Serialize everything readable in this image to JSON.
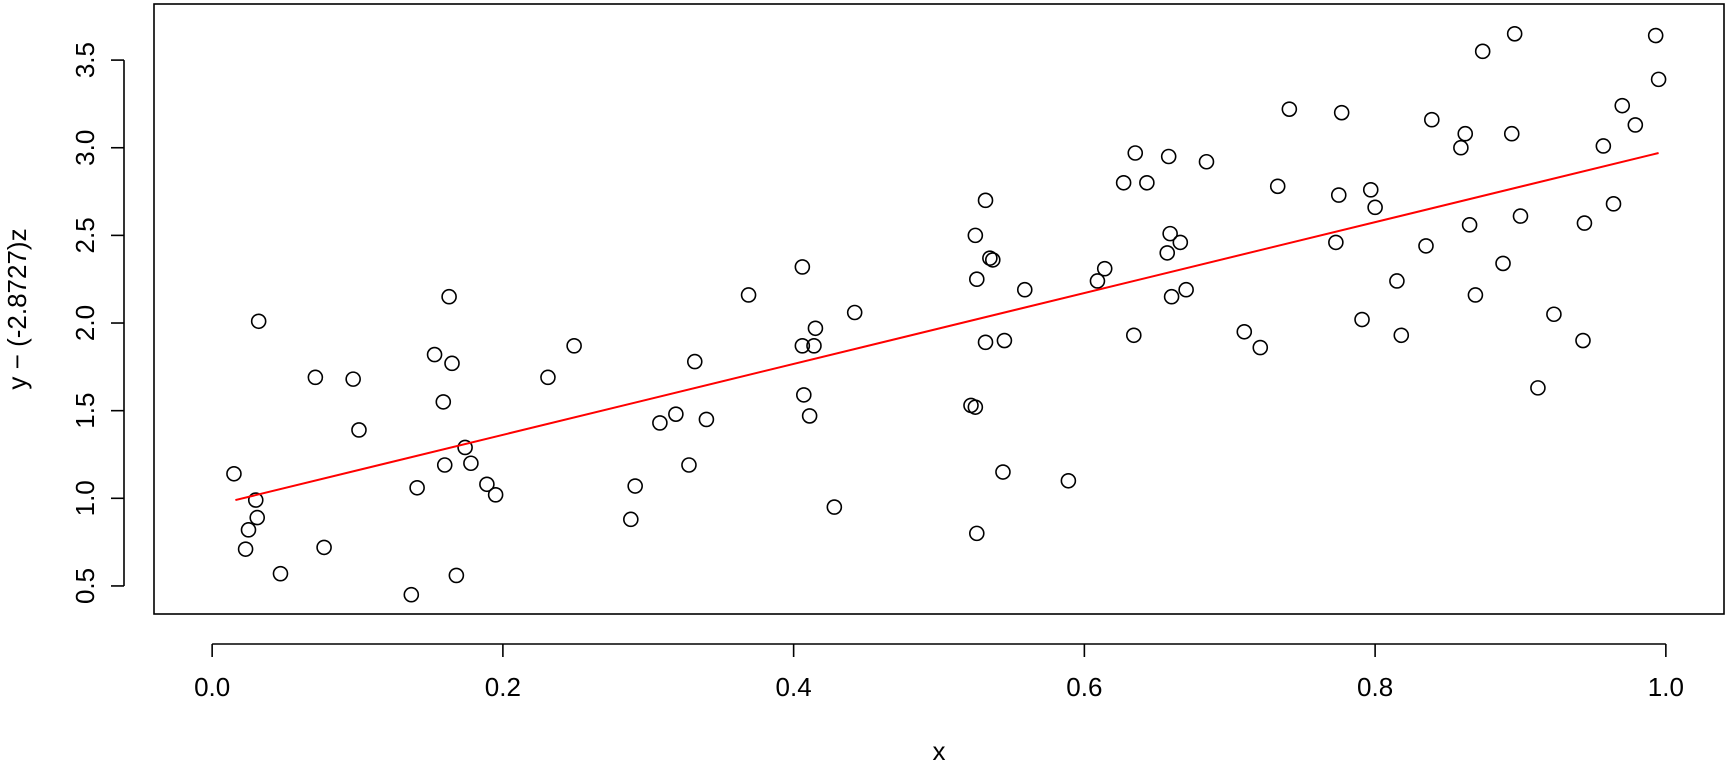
{
  "chart_data": {
    "type": "scatter",
    "title": "",
    "xlabel": "x",
    "ylabel": "y − (-2.8727)z",
    "xlim": [
      -0.04,
      1.04
    ],
    "ylim": [
      0.34,
      3.82
    ],
    "x_ticks": [
      0.0,
      0.2,
      0.4,
      0.6,
      0.8,
      1.0
    ],
    "x_tick_labels": [
      "0.0",
      "0.2",
      "0.4",
      "0.6",
      "0.8",
      "1.0"
    ],
    "y_ticks": [
      0.5,
      1.0,
      1.5,
      2.0,
      2.5,
      3.0,
      3.5
    ],
    "y_tick_labels": [
      "0.5",
      "1.0",
      "1.5",
      "2.0",
      "2.5",
      "3.0",
      "3.5"
    ],
    "grid": false,
    "legend": "none",
    "colors": {
      "points": "#000000",
      "fit_line": "#ff0000",
      "frame": "#000000"
    },
    "fit_line": {
      "x": [
        0.016,
        0.995
      ],
      "y": [
        0.99,
        2.97
      ]
    },
    "points": [
      {
        "x": 0.015,
        "y": 1.14
      },
      {
        "x": 0.023,
        "y": 0.71
      },
      {
        "x": 0.025,
        "y": 0.82
      },
      {
        "x": 0.03,
        "y": 0.99
      },
      {
        "x": 0.031,
        "y": 0.89
      },
      {
        "x": 0.032,
        "y": 2.01
      },
      {
        "x": 0.047,
        "y": 0.57
      },
      {
        "x": 0.071,
        "y": 1.69
      },
      {
        "x": 0.077,
        "y": 0.72
      },
      {
        "x": 0.097,
        "y": 1.68
      },
      {
        "x": 0.101,
        "y": 1.39
      },
      {
        "x": 0.137,
        "y": 0.45
      },
      {
        "x": 0.141,
        "y": 1.06
      },
      {
        "x": 0.153,
        "y": 1.82
      },
      {
        "x": 0.159,
        "y": 1.55
      },
      {
        "x": 0.16,
        "y": 1.19
      },
      {
        "x": 0.163,
        "y": 2.15
      },
      {
        "x": 0.165,
        "y": 1.77
      },
      {
        "x": 0.168,
        "y": 0.56
      },
      {
        "x": 0.174,
        "y": 1.29
      },
      {
        "x": 0.178,
        "y": 1.2
      },
      {
        "x": 0.189,
        "y": 1.08
      },
      {
        "x": 0.195,
        "y": 1.02
      },
      {
        "x": 0.231,
        "y": 1.69
      },
      {
        "x": 0.249,
        "y": 1.87
      },
      {
        "x": 0.288,
        "y": 0.88
      },
      {
        "x": 0.291,
        "y": 1.07
      },
      {
        "x": 0.308,
        "y": 1.43
      },
      {
        "x": 0.319,
        "y": 1.48
      },
      {
        "x": 0.328,
        "y": 1.19
      },
      {
        "x": 0.332,
        "y": 1.78
      },
      {
        "x": 0.34,
        "y": 1.45
      },
      {
        "x": 0.369,
        "y": 2.16
      },
      {
        "x": 0.406,
        "y": 2.32
      },
      {
        "x": 0.406,
        "y": 1.87
      },
      {
        "x": 0.407,
        "y": 1.59
      },
      {
        "x": 0.411,
        "y": 1.47
      },
      {
        "x": 0.414,
        "y": 1.87
      },
      {
        "x": 0.415,
        "y": 1.97
      },
      {
        "x": 0.428,
        "y": 0.95
      },
      {
        "x": 0.442,
        "y": 2.06
      },
      {
        "x": 0.522,
        "y": 1.53
      },
      {
        "x": 0.525,
        "y": 1.52
      },
      {
        "x": 0.525,
        "y": 2.5
      },
      {
        "x": 0.526,
        "y": 0.8
      },
      {
        "x": 0.526,
        "y": 2.25
      },
      {
        "x": 0.532,
        "y": 2.7
      },
      {
        "x": 0.532,
        "y": 1.89
      },
      {
        "x": 0.535,
        "y": 2.37
      },
      {
        "x": 0.537,
        "y": 2.36
      },
      {
        "x": 0.544,
        "y": 1.15
      },
      {
        "x": 0.545,
        "y": 1.9
      },
      {
        "x": 0.559,
        "y": 2.19
      },
      {
        "x": 0.589,
        "y": 1.1
      },
      {
        "x": 0.609,
        "y": 2.24
      },
      {
        "x": 0.614,
        "y": 2.31
      },
      {
        "x": 0.627,
        "y": 2.8
      },
      {
        "x": 0.634,
        "y": 1.93
      },
      {
        "x": 0.635,
        "y": 2.97
      },
      {
        "x": 0.643,
        "y": 2.8
      },
      {
        "x": 0.657,
        "y": 2.4
      },
      {
        "x": 0.658,
        "y": 2.95
      },
      {
        "x": 0.659,
        "y": 2.51
      },
      {
        "x": 0.66,
        "y": 2.15
      },
      {
        "x": 0.666,
        "y": 2.46
      },
      {
        "x": 0.67,
        "y": 2.19
      },
      {
        "x": 0.684,
        "y": 2.92
      },
      {
        "x": 0.71,
        "y": 1.95
      },
      {
        "x": 0.721,
        "y": 1.86
      },
      {
        "x": 0.733,
        "y": 2.78
      },
      {
        "x": 0.741,
        "y": 3.22
      },
      {
        "x": 0.773,
        "y": 2.46
      },
      {
        "x": 0.775,
        "y": 2.73
      },
      {
        "x": 0.777,
        "y": 3.2
      },
      {
        "x": 0.791,
        "y": 2.02
      },
      {
        "x": 0.797,
        "y": 2.76
      },
      {
        "x": 0.8,
        "y": 2.66
      },
      {
        "x": 0.815,
        "y": 2.24
      },
      {
        "x": 0.818,
        "y": 1.93
      },
      {
        "x": 0.835,
        "y": 2.44
      },
      {
        "x": 0.839,
        "y": 3.16
      },
      {
        "x": 0.859,
        "y": 3.0
      },
      {
        "x": 0.862,
        "y": 3.08
      },
      {
        "x": 0.865,
        "y": 2.56
      },
      {
        "x": 0.869,
        "y": 2.16
      },
      {
        "x": 0.874,
        "y": 3.55
      },
      {
        "x": 0.888,
        "y": 2.34
      },
      {
        "x": 0.894,
        "y": 3.08
      },
      {
        "x": 0.896,
        "y": 3.65
      },
      {
        "x": 0.9,
        "y": 2.61
      },
      {
        "x": 0.912,
        "y": 1.63
      },
      {
        "x": 0.923,
        "y": 2.05
      },
      {
        "x": 0.943,
        "y": 1.9
      },
      {
        "x": 0.944,
        "y": 2.57
      },
      {
        "x": 0.957,
        "y": 3.01
      },
      {
        "x": 0.964,
        "y": 2.68
      },
      {
        "x": 0.97,
        "y": 3.24
      },
      {
        "x": 0.979,
        "y": 3.13
      },
      {
        "x": 0.993,
        "y": 3.64
      },
      {
        "x": 0.995,
        "y": 3.39
      }
    ]
  }
}
